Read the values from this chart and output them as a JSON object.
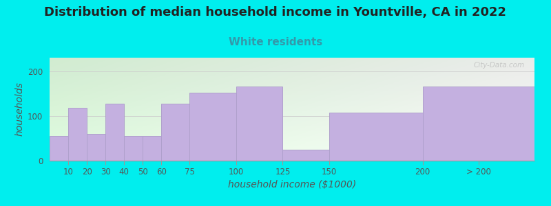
{
  "title": "Distribution of median household income in Yountville, CA in 2022",
  "subtitle": "White residents",
  "xlabel": "household income ($1000)",
  "ylabel": "households",
  "bar_labels": [
    "10",
    "20",
    "30",
    "40",
    "50",
    "60",
    "75",
    "100",
    "125",
    "150",
    "200",
    "> 200"
  ],
  "bar_values": [
    55,
    118,
    60,
    128,
    55,
    55,
    128,
    152,
    165,
    25,
    108,
    165
  ],
  "bar_lefts": [
    0,
    10,
    20,
    30,
    40,
    50,
    60,
    75,
    100,
    125,
    150,
    200
  ],
  "bar_widths": [
    10,
    10,
    10,
    10,
    10,
    10,
    15,
    25,
    25,
    25,
    50,
    60
  ],
  "bar_color": "#C4B0E0",
  "bar_edgecolor": "#AFA0CC",
  "background_color": "#00EEEE",
  "plot_bg_color": "#edf5e8",
  "yticks": [
    0,
    100,
    200
  ],
  "ylim": [
    0,
    230
  ],
  "xlim": [
    0,
    260
  ],
  "title_fontsize": 13,
  "subtitle_fontsize": 11,
  "subtitle_color": "#3399AA",
  "axis_label_fontsize": 10,
  "tick_fontsize": 8.5,
  "watermark": "City-Data.com",
  "xtick_positions": [
    10,
    20,
    30,
    40,
    50,
    60,
    75,
    100,
    125,
    150,
    200,
    230
  ],
  "grid_color": "#cccccc",
  "text_color": "#555555"
}
